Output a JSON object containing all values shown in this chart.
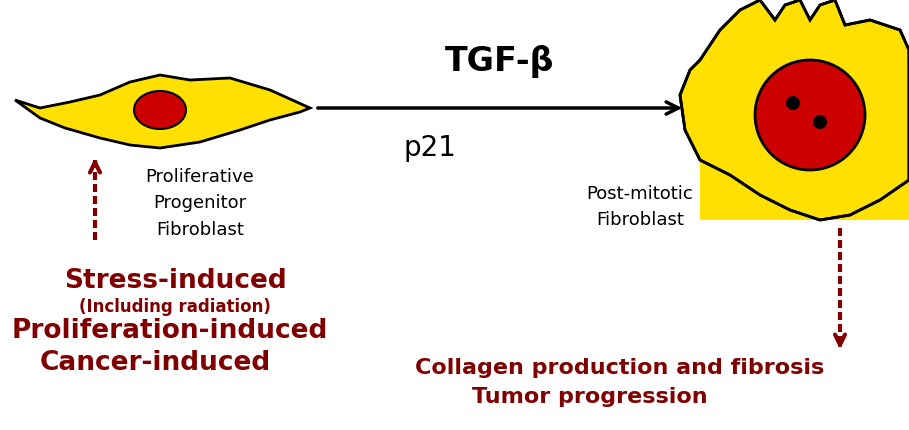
{
  "bg_color": "#ffffff",
  "tgf_beta_text": "TGF-β",
  "p21_text": "p21",
  "prolif_label": "Proliferative\nProgenitor\nFibroblast",
  "postmitotic_label": "Post-mitotic\nFibroblast",
  "stress_text1": "Stress-induced",
  "stress_text2": "(Including radiation)",
  "stress_text3": "Proliferation-induced",
  "stress_text4": "Cancer-induced",
  "collagen_text1": "Collagen production and fibrosis",
  "collagen_text2": "Tumor progression",
  "dark_red": "#800000",
  "black": "#000000",
  "yellow": "#FFE000",
  "red_cell": "#CC0000",
  "figsize": [
    9.09,
    4.3
  ],
  "dpi": 100
}
